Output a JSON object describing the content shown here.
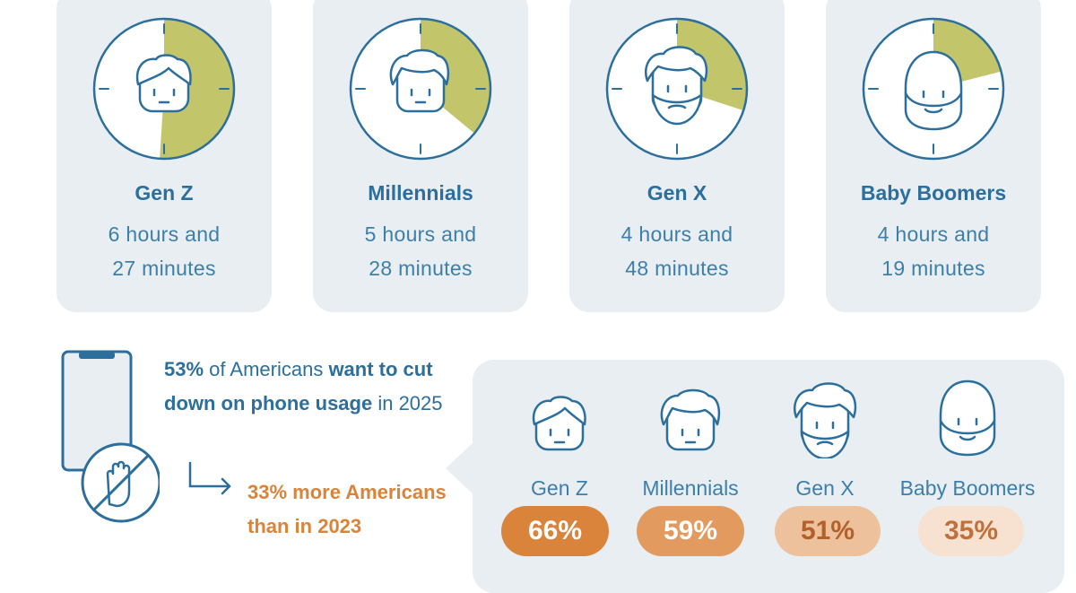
{
  "colors": {
    "card_bg": "#e8eef2",
    "navy": "#2c6f9c",
    "accent_green": "#c2c56a",
    "orange": "#d9833b"
  },
  "screen_time": [
    {
      "generation": "Gen Z",
      "line1": "6 hours and",
      "line2": "27 minutes",
      "share_of_day": 0.51
    },
    {
      "generation": "Millennials",
      "line1": "5 hours and",
      "line2": "28 minutes",
      "share_of_day": 0.36
    },
    {
      "generation": "Gen X",
      "line1": "4 hours and",
      "line2": "48 minutes",
      "share_of_day": 0.3
    },
    {
      "generation": "Baby Boomers",
      "line1": "4 hours and",
      "line2": "19 minutes",
      "share_of_day": 0.21
    }
  ],
  "stat": {
    "pct": "53%",
    "t1": " of Americans ",
    "b1": "want to cut down on phone usage",
    "t2": " in 2025"
  },
  "followup": "33% more Americans than in 2023",
  "cut_down": [
    {
      "generation": "Gen Z",
      "pct": "66%"
    },
    {
      "generation": "Millennials",
      "pct": "59%"
    },
    {
      "generation": "Gen X",
      "pct": "51%"
    },
    {
      "generation": "Baby Boomers",
      "pct": "35%"
    }
  ]
}
